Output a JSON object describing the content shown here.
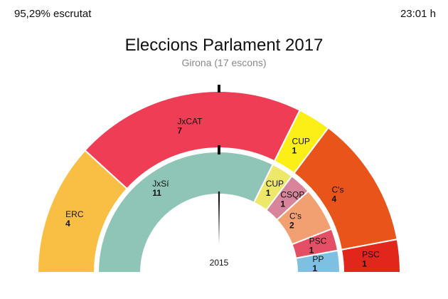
{
  "header": {
    "counted": "95,29% escrutat",
    "time": "23:01 h"
  },
  "chart_data": {
    "type": "hemicycle",
    "title": "Eleccions Parlament 2017",
    "subtitle": "Girona (17 escons)",
    "total_seats": 17,
    "rings": [
      {
        "name": "2017",
        "parties": [
          {
            "name": "ERC",
            "seats": 4,
            "color": "#f9bf45"
          },
          {
            "name": "JxCAT",
            "seats": 7,
            "color": "#ef3d55"
          },
          {
            "name": "CUP",
            "seats": 1,
            "color": "#fcef17"
          },
          {
            "name": "C's",
            "seats": 4,
            "color": "#e9541a"
          },
          {
            "name": "PSC",
            "seats": 1,
            "color": "#e1261c"
          }
        ]
      },
      {
        "name": "2015",
        "label": "2015",
        "parties": [
          {
            "name": "JxSí",
            "seats": 11,
            "color": "#8ec5b6"
          },
          {
            "name": "CUP",
            "seats": 1,
            "color": "#ede76a"
          },
          {
            "name": "CSQP",
            "seats": 1,
            "color": "#d8849a"
          },
          {
            "name": "C's",
            "seats": 2,
            "color": "#f2a071"
          },
          {
            "name": "PSC",
            "seats": 1,
            "color": "#e44f66"
          },
          {
            "name": "PP",
            "seats": 1,
            "color": "#7dc0e2"
          }
        ]
      }
    ]
  }
}
